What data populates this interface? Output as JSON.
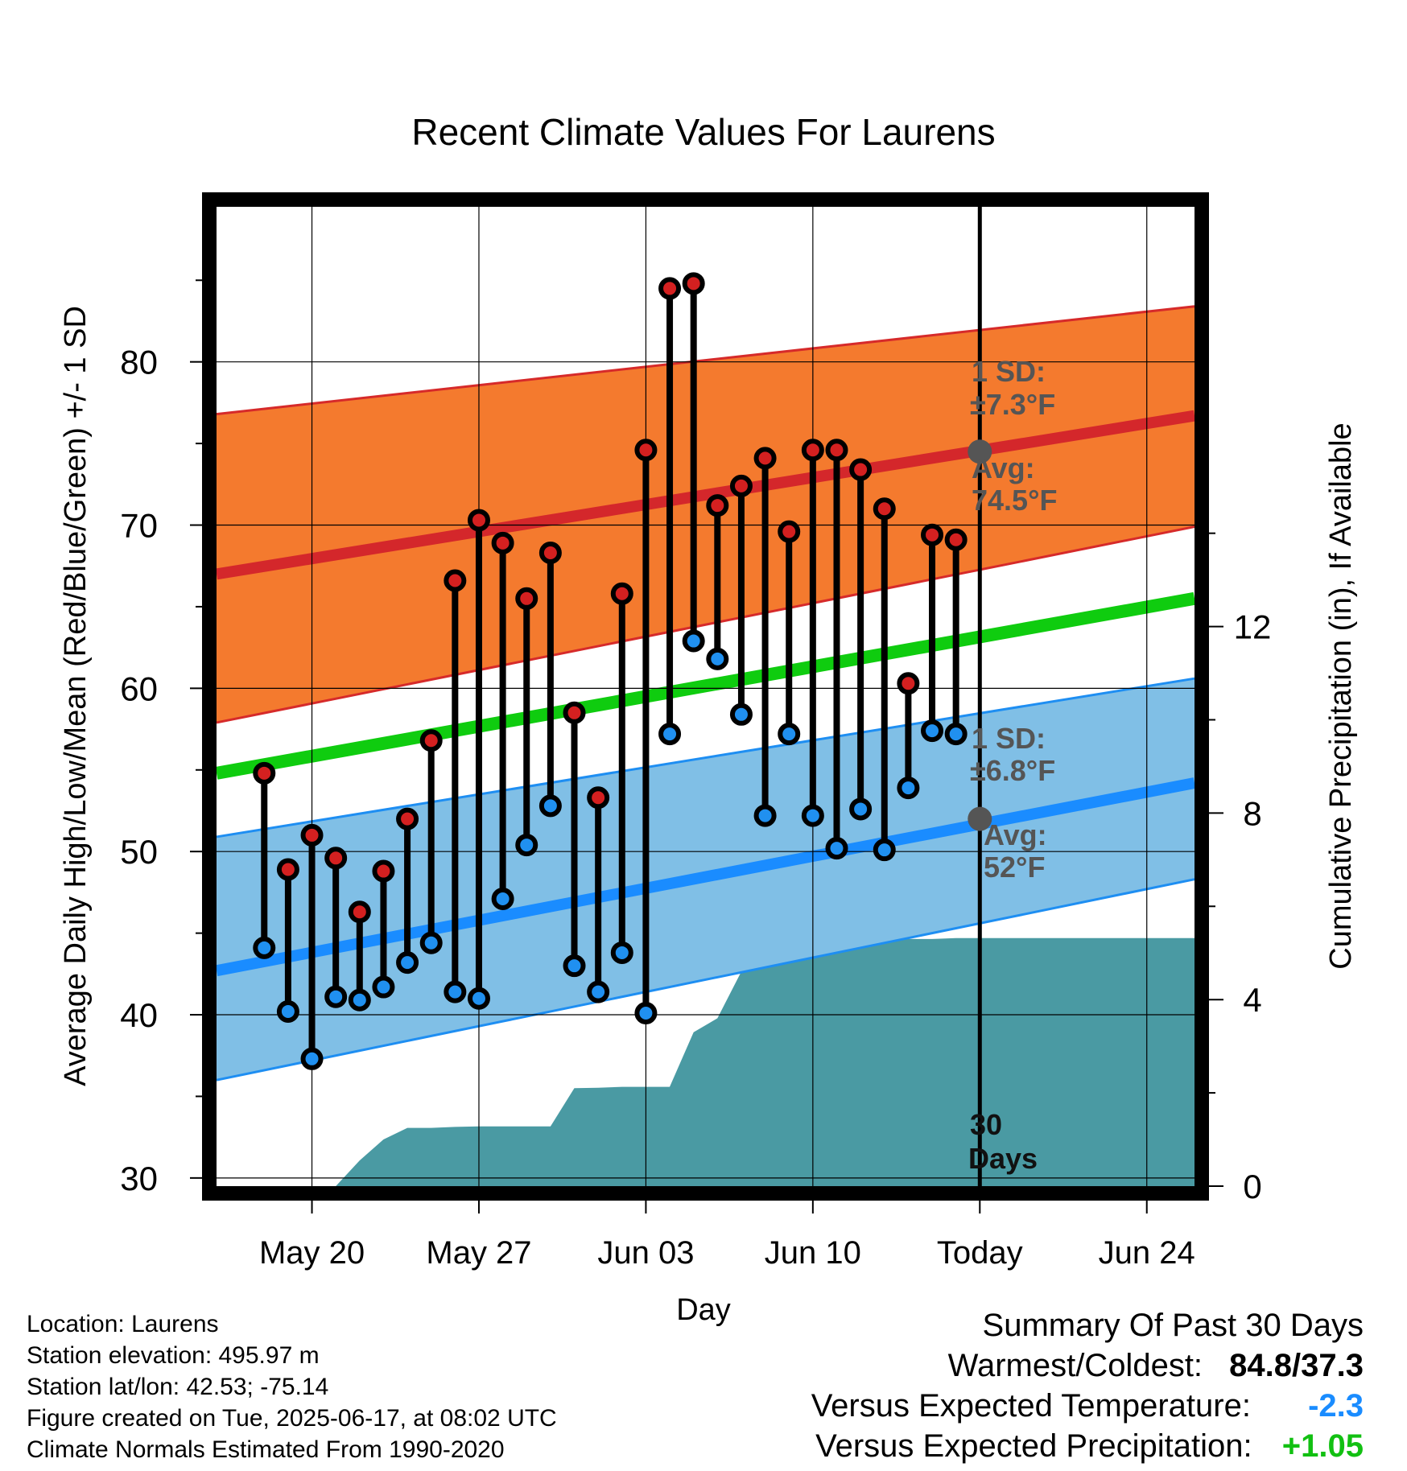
{
  "chart_data": {
    "type": "line",
    "title": "Recent Climate Values For Laurens",
    "xlabel": "Day",
    "ylabel": "Average Daily High/Low/Mean (Red/Blue/Green) +/- 1 SD",
    "y2label": "Cumulative Precipitation (in), If Available",
    "ylim": [
      29.5,
      89.5
    ],
    "y_ticks": [
      "30",
      "40",
      "50",
      "60",
      "70",
      "80"
    ],
    "y2lim": [
      0,
      21
    ],
    "y2_ticks": [
      "0",
      "4",
      "8",
      "12"
    ],
    "x_range": [
      "2025-05-16",
      "2025-06-26"
    ],
    "x_ticks": [
      {
        "date": "2025-05-20",
        "label": "May 20"
      },
      {
        "date": "2025-05-27",
        "label": "May 27"
      },
      {
        "date": "2025-06-03",
        "label": "Jun 03"
      },
      {
        "date": "2025-06-10",
        "label": "Jun 10"
      },
      {
        "date": "2025-06-17",
        "label": "Today"
      },
      {
        "date": "2025-06-24",
        "label": "Jun 24"
      }
    ],
    "grid": true,
    "daily": [
      {
        "date": "2025-05-18",
        "high": 54.8,
        "low": 44.1
      },
      {
        "date": "2025-05-19",
        "high": 48.9,
        "low": 40.2
      },
      {
        "date": "2025-05-20",
        "high": 51.0,
        "low": 37.3
      },
      {
        "date": "2025-05-21",
        "high": 49.6,
        "low": 41.1
      },
      {
        "date": "2025-05-22",
        "high": 46.3,
        "low": 40.9
      },
      {
        "date": "2025-05-23",
        "high": 48.8,
        "low": 41.7
      },
      {
        "date": "2025-05-24",
        "high": 52.0,
        "low": 43.2
      },
      {
        "date": "2025-05-25",
        "high": 56.8,
        "low": 44.4
      },
      {
        "date": "2025-05-26",
        "high": 66.6,
        "low": 41.4
      },
      {
        "date": "2025-05-27",
        "high": 70.3,
        "low": 41.0
      },
      {
        "date": "2025-05-28",
        "high": 68.9,
        "low": 47.1
      },
      {
        "date": "2025-05-29",
        "high": 65.5,
        "low": 50.4
      },
      {
        "date": "2025-05-30",
        "high": 68.3,
        "low": 52.8
      },
      {
        "date": "2025-05-31",
        "high": 58.5,
        "low": 43.0
      },
      {
        "date": "2025-06-01",
        "high": 53.3,
        "low": 41.4
      },
      {
        "date": "2025-06-02",
        "high": 65.8,
        "low": 43.8
      },
      {
        "date": "2025-06-03",
        "high": 74.6,
        "low": 40.1
      },
      {
        "date": "2025-06-04",
        "high": 84.5,
        "low": 57.2
      },
      {
        "date": "2025-06-05",
        "high": 84.8,
        "low": 62.9
      },
      {
        "date": "2025-06-06",
        "high": 71.2,
        "low": 61.8
      },
      {
        "date": "2025-06-07",
        "high": 72.4,
        "low": 58.4
      },
      {
        "date": "2025-06-08",
        "high": 74.1,
        "low": 52.2
      },
      {
        "date": "2025-06-09",
        "high": 69.6,
        "low": 57.2
      },
      {
        "date": "2025-06-10",
        "high": 74.6,
        "low": 52.2
      },
      {
        "date": "2025-06-11",
        "high": 74.6,
        "low": 50.2
      },
      {
        "date": "2025-06-12",
        "high": 73.4,
        "low": 52.6
      },
      {
        "date": "2025-06-13",
        "high": 71.0,
        "low": 50.1
      },
      {
        "date": "2025-06-14",
        "high": 60.3,
        "low": 53.9
      },
      {
        "date": "2025-06-15",
        "high": 69.4,
        "low": 57.4
      },
      {
        "date": "2025-06-16",
        "high": 69.1,
        "low": 57.2
      }
    ],
    "normal_high": {
      "start": 67.0,
      "end": 76.7,
      "sd_upper_start": 76.8,
      "sd_upper_end": 83.4,
      "sd_lower_start": 57.9,
      "sd_lower_end": 69.9
    },
    "normal_low": {
      "start": 42.7,
      "end": 54.2,
      "sd_upper_start": 50.9,
      "sd_upper_end": 60.6,
      "sd_lower_start": 36.0,
      "sd_lower_end": 48.3
    },
    "normal_mean": {
      "start": 54.8,
      "end": 65.5
    },
    "today_markers": [
      {
        "series": "high",
        "avg": 74.5
      },
      {
        "series": "low",
        "avg": 52.0
      }
    ],
    "annotations": {
      "high_sd_label": "1 SD:",
      "high_sd_value": "±7.3°F",
      "high_avg_label": "Avg:",
      "high_avg_value": "74.5°F",
      "low_sd_label": "1 SD:",
      "low_sd_value": "±6.8°F",
      "low_avg_label": "Avg:",
      "low_avg_value": "52°F",
      "period_number": "30",
      "period_unit": "Days"
    },
    "precip_cumulative": [
      {
        "date": "2025-05-16",
        "value": 0.0
      },
      {
        "date": "2025-05-17",
        "value": 0.0
      },
      {
        "date": "2025-05-18",
        "value": 0.0
      },
      {
        "date": "2025-05-19",
        "value": 0.0
      },
      {
        "date": "2025-05-20",
        "value": 0.0
      },
      {
        "date": "2025-05-21",
        "value": 0.0
      },
      {
        "date": "2025-05-22",
        "value": 0.55
      },
      {
        "date": "2025-05-23",
        "value": 1.0
      },
      {
        "date": "2025-05-24",
        "value": 1.25
      },
      {
        "date": "2025-05-25",
        "value": 1.25
      },
      {
        "date": "2025-05-26",
        "value": 1.27
      },
      {
        "date": "2025-05-27",
        "value": 1.28
      },
      {
        "date": "2025-05-28",
        "value": 1.28
      },
      {
        "date": "2025-05-29",
        "value": 1.28
      },
      {
        "date": "2025-05-30",
        "value": 1.28
      },
      {
        "date": "2025-05-31",
        "value": 2.1
      },
      {
        "date": "2025-06-01",
        "value": 2.11
      },
      {
        "date": "2025-06-02",
        "value": 2.13
      },
      {
        "date": "2025-06-03",
        "value": 2.13
      },
      {
        "date": "2025-06-04",
        "value": 2.13
      },
      {
        "date": "2025-06-05",
        "value": 3.3
      },
      {
        "date": "2025-06-06",
        "value": 3.6
      },
      {
        "date": "2025-06-07",
        "value": 4.6
      },
      {
        "date": "2025-06-08",
        "value": 4.7
      },
      {
        "date": "2025-06-09",
        "value": 4.9
      },
      {
        "date": "2025-06-10",
        "value": 5.25
      },
      {
        "date": "2025-06-11",
        "value": 5.25
      },
      {
        "date": "2025-06-12",
        "value": 5.25
      },
      {
        "date": "2025-06-13",
        "value": 5.25
      },
      {
        "date": "2025-06-14",
        "value": 5.3
      },
      {
        "date": "2025-06-15",
        "value": 5.3
      },
      {
        "date": "2025-06-16",
        "value": 5.32
      },
      {
        "date": "2025-06-17",
        "value": 5.32
      },
      {
        "date": "2025-06-26",
        "value": 5.32
      }
    ],
    "colors": {
      "high_band": "#f47a2e",
      "high_band_edge": "#d62a2a",
      "high_line": "#d4272b",
      "low_band": "#80bfe6",
      "low_band_edge": "#1e8ef2",
      "low_line": "#1a8cff",
      "mean_line": "#0fcc0f",
      "precip": "#4a9aa3",
      "high_marker": "#d42020",
      "low_marker": "#2090f0",
      "today_marker": "#555555",
      "annotation_text": "#555555"
    }
  },
  "footer": {
    "location": "Location: Laurens",
    "elevation": "Station elevation: 495.97 m",
    "latlon": "Station lat/lon: 42.53; -75.14",
    "created": "Figure created on Tue, 2025-06-17, at 08:02 UTC",
    "normals": "Climate Normals Estimated From 1990-2020"
  },
  "summary": {
    "title": "Summary Of Past 30 Days",
    "warmest_coldest_label": "Warmest/Coldest:",
    "warmest_coldest_value": "84.8/37.3",
    "temp_label": "Versus Expected Temperature:",
    "temp_value": "-2.3",
    "temp_color": "#1a8cff",
    "precip_label": "Versus Expected Precipitation:",
    "precip_value": "+1.05",
    "precip_color": "#12c012"
  }
}
